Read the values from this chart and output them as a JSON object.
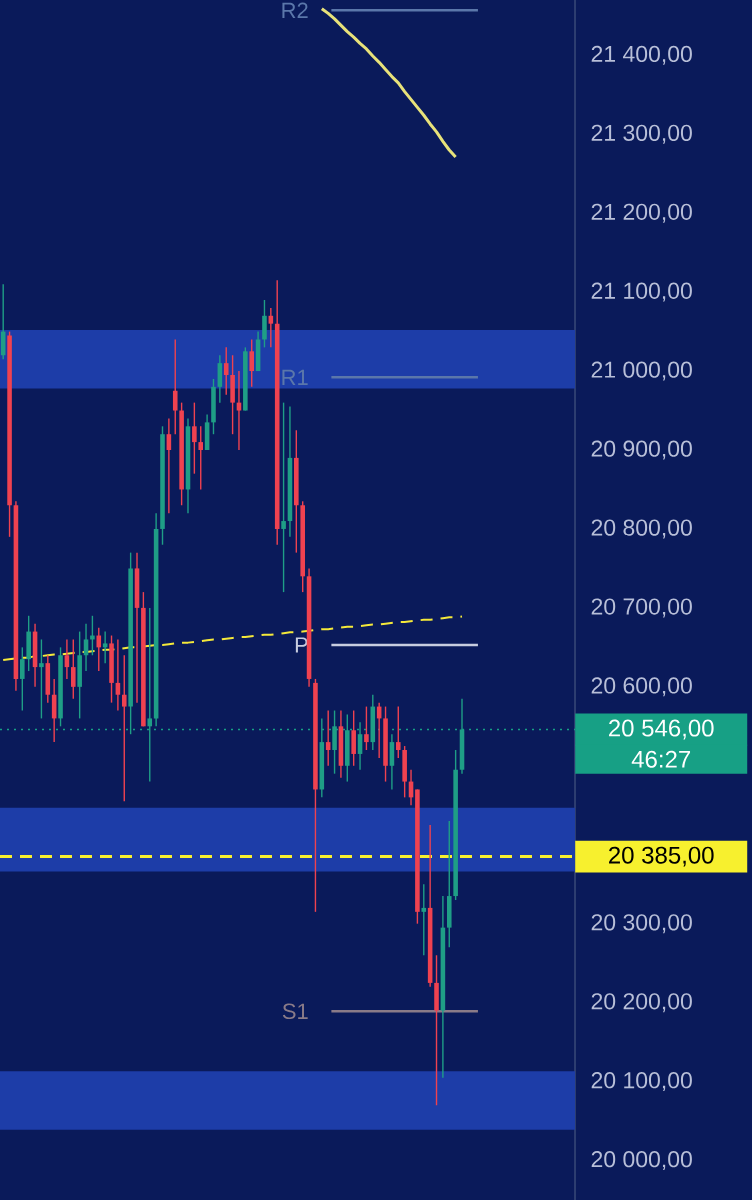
{
  "chart_data": {
    "type": "candlestick",
    "categories": [
      null,
      null,
      null,
      null,
      null,
      null,
      null,
      null,
      null,
      null,
      null,
      null,
      null,
      null,
      null,
      null,
      null,
      null,
      null,
      null,
      null,
      null,
      null,
      null,
      null,
      null,
      null,
      null,
      null,
      null,
      null,
      null,
      null,
      null,
      null,
      null,
      null,
      null,
      null,
      null,
      null,
      null,
      null,
      null,
      null,
      null,
      null,
      null,
      null,
      null,
      null,
      null,
      null,
      null,
      null,
      null,
      null,
      null,
      null,
      null,
      null,
      null,
      null,
      null,
      null,
      null,
      null,
      null,
      null,
      null,
      null,
      null,
      null
    ],
    "ohlc": [
      [
        21020,
        21110,
        21015,
        21050
      ],
      [
        21045,
        21050,
        20790,
        20830
      ],
      [
        20830,
        20835,
        20595,
        20610
      ],
      [
        20610,
        20650,
        20570,
        20635
      ],
      [
        20635,
        20690,
        20620,
        20670
      ],
      [
        20670,
        20680,
        20600,
        20625
      ],
      [
        20625,
        20660,
        20560,
        20630
      ],
      [
        20630,
        20640,
        20580,
        20590
      ],
      [
        20590,
        20610,
        20530,
        20560
      ],
      [
        20560,
        20650,
        20550,
        20640
      ],
      [
        20640,
        20660,
        20610,
        20625
      ],
      [
        20625,
        20660,
        20585,
        20600
      ],
      [
        20600,
        20670,
        20560,
        20640
      ],
      [
        20640,
        20680,
        20620,
        20660
      ],
      [
        20660,
        20690,
        20640,
        20665
      ],
      [
        20665,
        20675,
        20620,
        20650
      ],
      [
        20650,
        20670,
        20630,
        20655
      ],
      [
        20655,
        20665,
        20580,
        20605
      ],
      [
        20605,
        20660,
        20570,
        20590
      ],
      [
        20590,
        20640,
        20455,
        20575
      ],
      [
        20575,
        20770,
        20540,
        20750
      ],
      [
        20750,
        20770,
        20580,
        20700
      ],
      [
        20700,
        20720,
        20550,
        20550
      ],
      [
        20550,
        20700,
        20480,
        20560
      ],
      [
        20560,
        20820,
        20550,
        20800
      ],
      [
        20800,
        20930,
        20780,
        20920
      ],
      [
        20920,
        20940,
        20820,
        20900
      ],
      [
        20975,
        21040,
        20920,
        20950
      ],
      [
        20950,
        20960,
        20830,
        20850
      ],
      [
        20850,
        20940,
        20820,
        20930
      ],
      [
        20930,
        20960,
        20870,
        20910
      ],
      [
        20910,
        20930,
        20850,
        20900
      ],
      [
        20900,
        20945,
        20900,
        20935
      ],
      [
        20935,
        20990,
        20920,
        20980
      ],
      [
        20980,
        21020,
        20960,
        21010
      ],
      [
        21010,
        21030,
        20970,
        20995
      ],
      [
        20995,
        21020,
        20920,
        20960
      ],
      [
        20960,
        21000,
        20900,
        20950
      ],
      [
        20950,
        21030,
        20950,
        21025
      ],
      [
        21025,
        21040,
        20980,
        21000
      ],
      [
        21000,
        21050,
        21000,
        21040
      ],
      [
        21040,
        21090,
        21030,
        21070
      ],
      [
        21070,
        21080,
        21030,
        21060
      ],
      [
        21060,
        21115,
        20780,
        20800
      ],
      [
        20800,
        20960,
        20720,
        20810
      ],
      [
        20810,
        20955,
        20790,
        20890
      ],
      [
        20890,
        20925,
        20770,
        20830
      ],
      [
        20830,
        20835,
        20720,
        20740
      ],
      [
        20740,
        20750,
        20600,
        20610
      ],
      [
        20605,
        20610,
        20315,
        20470
      ],
      [
        20470,
        20560,
        20460,
        20530
      ],
      [
        20530,
        20570,
        20500,
        20520
      ],
      [
        20520,
        20570,
        20490,
        20550
      ],
      [
        20550,
        20570,
        20485,
        20500
      ],
      [
        20500,
        20565,
        20480,
        20545
      ],
      [
        20545,
        20570,
        20500,
        20515
      ],
      [
        20515,
        20555,
        20495,
        20540
      ],
      [
        20540,
        20575,
        20520,
        20530
      ],
      [
        20530,
        20590,
        20520,
        20575
      ],
      [
        20575,
        20580,
        20510,
        20560
      ],
      [
        20560,
        20575,
        20480,
        20500
      ],
      [
        20500,
        20540,
        20470,
        20530
      ],
      [
        20530,
        20575,
        20510,
        20520
      ],
      [
        20520,
        20525,
        20460,
        20480
      ],
      [
        20480,
        20495,
        20450,
        20460
      ],
      [
        20470,
        20470,
        20300,
        20315
      ],
      [
        20315,
        20350,
        20260,
        20320
      ],
      [
        20320,
        20425,
        20220,
        20225
      ],
      [
        20225,
        20260,
        20070,
        20190
      ],
      [
        20190,
        20335,
        20105,
        20295
      ],
      [
        20295,
        20430,
        20270,
        20335
      ],
      [
        20335,
        20520,
        20330,
        20495
      ],
      [
        20495,
        20585,
        20490,
        20546
      ]
    ],
    "series": [
      {
        "type": "line",
        "color": "#f5e93a",
        "line_style": "dashed",
        "values": [
          20634,
          20635,
          20636,
          20637,
          20637,
          20639,
          20639,
          20640,
          20641,
          20641,
          20642,
          20643,
          20644,
          20644,
          20645,
          20646,
          20647,
          20647,
          20648,
          20649,
          20650,
          20650,
          20651,
          20652,
          20653,
          20653,
          20654,
          20655,
          20656,
          20656,
          20657,
          20658,
          20659,
          20660,
          20660,
          20661,
          20662,
          20663,
          20663,
          20664,
          20665,
          20666,
          20666,
          20667,
          20668,
          20669,
          20669,
          20670,
          20671,
          20672,
          20673,
          20673,
          20674,
          20675,
          20676,
          20676,
          20677,
          20678,
          20679,
          20679,
          20680,
          20681,
          20682,
          20682,
          20683,
          20684,
          20685,
          20685,
          20686,
          20687,
          20688,
          20688,
          20689
        ]
      },
      {
        "type": "line",
        "color": "#e8e27a",
        "line_style": "solid",
        "values": [
          null,
          null,
          null,
          null,
          null,
          null,
          null,
          null,
          null,
          null,
          null,
          null,
          null,
          null,
          null,
          null,
          null,
          null,
          null,
          null,
          null,
          null,
          null,
          null,
          null,
          null,
          null,
          null,
          null,
          null,
          null,
          null,
          null,
          null,
          null,
          null,
          null,
          null,
          null,
          null,
          null,
          null,
          null,
          null,
          null,
          null,
          null,
          null,
          null,
          null,
          21459,
          21453,
          21446,
          21438,
          21430,
          21423,
          21415,
          21408,
          21399,
          21391,
          21382,
          21373,
          21365,
          21354,
          21344,
          21334,
          21324,
          21313,
          21303,
          21291,
          21280,
          21271,
          null
        ]
      }
    ],
    "ref_lines": [
      {
        "axis": "y",
        "value": 20546,
        "label": "20 546,00",
        "color": "#17a085",
        "line_style": "dotted"
      },
      {
        "axis": "y",
        "value": 20385,
        "label": "20 385,00",
        "color": "#f7f02e",
        "line_style": "dashed"
      },
      {
        "axis": "y",
        "value": 21457,
        "label": "R2",
        "color": "#5b77aa"
      },
      {
        "axis": "y",
        "value": 20992,
        "label": "R1",
        "color": "#5b77aa"
      },
      {
        "axis": "y",
        "value": 20653,
        "label": "P",
        "color": "#c8cde0"
      },
      {
        "axis": "y",
        "value": 20189,
        "label": "S1",
        "color": "#8a7b88"
      }
    ],
    "bands": [
      {
        "axis": "y",
        "from": 20978,
        "to": 21052,
        "color": "#1d3da8"
      },
      {
        "axis": "y",
        "from": 20366,
        "to": 20447,
        "color": "#1d3da8"
      },
      {
        "axis": "y",
        "from": 20039,
        "to": 20113,
        "color": "#1d3da8"
      }
    ],
    "annotations": [
      "46:27"
    ],
    "ylim": [
      19950,
      21470
    ],
    "yticks": [
      {
        "value": 20000,
        "label": "20 000,00"
      },
      {
        "value": 20100,
        "label": "20 100,00"
      },
      {
        "value": 20200,
        "label": "20 200,00"
      },
      {
        "value": 20300,
        "label": "20 300,00"
      },
      {
        "value": 20600,
        "label": "20 600,00"
      },
      {
        "value": 20700,
        "label": "20 700,00"
      },
      {
        "value": 20800,
        "label": "20 800,00"
      },
      {
        "value": 20900,
        "label": "20 900,00"
      },
      {
        "value": 21000,
        "label": "21 000,00"
      },
      {
        "value": 21100,
        "label": "21 100,00"
      },
      {
        "value": 21200,
        "label": "21 200,00"
      },
      {
        "value": 21300,
        "label": "21 300,00"
      },
      {
        "value": 21400,
        "label": "21 400,00"
      }
    ],
    "tick_labels": "y"
  }
}
